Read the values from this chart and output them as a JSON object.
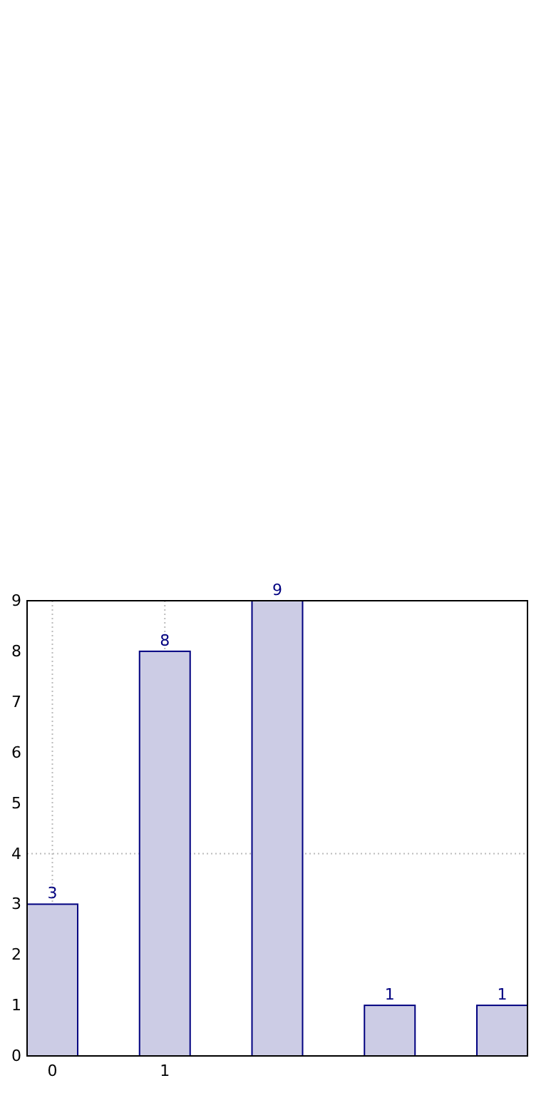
{
  "chart_data": {
    "type": "bar",
    "categories": [
      "0",
      "1",
      null,
      null,
      null
    ],
    "series": [
      {
        "color": "#cccce5",
        "values": [
          3,
          8,
          9,
          1,
          1
        ]
      }
    ],
    "ylim": [
      0,
      9
    ],
    "yticks": [
      0,
      1,
      2,
      3,
      4,
      5,
      6,
      7,
      8,
      9
    ],
    "grid": "x",
    "data_labels": true,
    "ref_lines": [
      {
        "axis": "y",
        "value": 4,
        "color": "#bbbbbb",
        "line_style": "dotted"
      }
    ]
  }
}
